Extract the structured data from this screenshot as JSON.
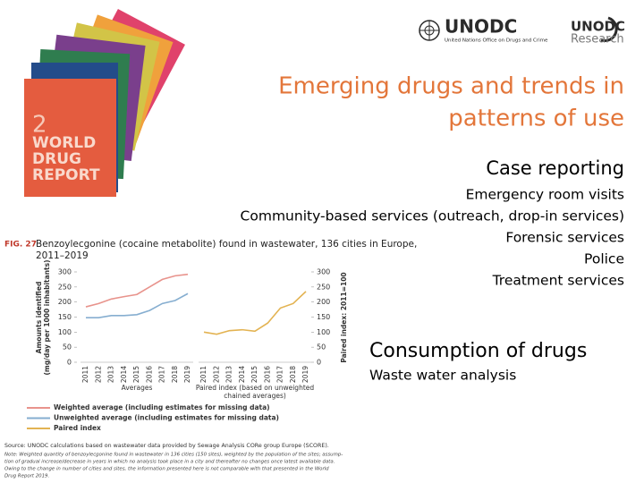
{
  "logos": {
    "unodc": "UNODC",
    "unodc_full": "United Nations Office on Drugs and Crime",
    "research_top": "UNODC",
    "research_bottom": "Research"
  },
  "cover": {
    "number": "2",
    "title": [
      "WORLD",
      "DRUG",
      "REPORT"
    ]
  },
  "title": [
    "Emerging drugs and trends in",
    "patterns of use"
  ],
  "case_reporting": {
    "heading": "Case reporting",
    "items": [
      "Emergency room visits",
      "Community-based services (outreach, drop-in services)",
      "Forensic services",
      "Police",
      "Treatment services"
    ]
  },
  "consumption": {
    "heading": "Consumption of drugs",
    "items": [
      "Waste water analysis"
    ]
  },
  "figure": {
    "label": "FIG. 27",
    "title": [
      "Benzoylecgonine (cocaine metabolite) found in wastewater, 136 cities in Europe,",
      "2011–2019"
    ],
    "source": "Source: UNODC calculations based on wastewater data provided by Sewage Analysis CORe group Europe (SCORE).",
    "note": [
      "Note: Weighted quantity of benzoylecgonine found in wastewater in 136 cities (150 sites), weighted by the population of the sites; assump-",
      "tion of gradual increase/decrease in years in which no analysis took place in a city and thereafter no changes once latest available data.",
      "Owing to the change in number of cities and sites, the information presented here is not comparable with that presented in the World",
      "Drug Report 2019."
    ]
  },
  "chart_data": [
    {
      "type": "line",
      "categories": [
        "2011",
        "2012",
        "2013",
        "2014",
        "2015",
        "2016",
        "2017",
        "2018",
        "2019"
      ],
      "ylim": [
        0,
        300
      ],
      "yticks": [
        0,
        50,
        100,
        150,
        200,
        250,
        300
      ],
      "ylabel": [
        "Amounts identified",
        "(mg/day per 1000 inhabitants)"
      ],
      "group_label": [
        "Averages"
      ],
      "series": [
        {
          "name": "Weighted average (including estimates for missing data)",
          "color": "#e8938c",
          "values": [
            184,
            195,
            210,
            218,
            225,
            250,
            275,
            287,
            292
          ]
        },
        {
          "name": "Unweighted average (including estimates for missing data)",
          "color": "#86aed0",
          "values": [
            148,
            148,
            155,
            155,
            158,
            172,
            195,
            205,
            228
          ]
        }
      ]
    },
    {
      "type": "line",
      "categories": [
        "2011",
        "2012",
        "2013",
        "2014",
        "2015",
        "2016",
        "2017",
        "2018",
        "2019"
      ],
      "y2lim": [
        0,
        300
      ],
      "y2ticks": [
        0,
        50,
        100,
        150,
        200,
        250,
        300
      ],
      "y2label": [
        "Paired index: 2011=100"
      ],
      "group_label": [
        "Paired index (based on unweighted",
        "chained averages)"
      ],
      "series": [
        {
          "name": "Paired index",
          "color": "#e3b352",
          "axis": "y2",
          "values": [
            100,
            93,
            105,
            108,
            103,
            130,
            180,
            195,
            235
          ]
        }
      ]
    }
  ]
}
